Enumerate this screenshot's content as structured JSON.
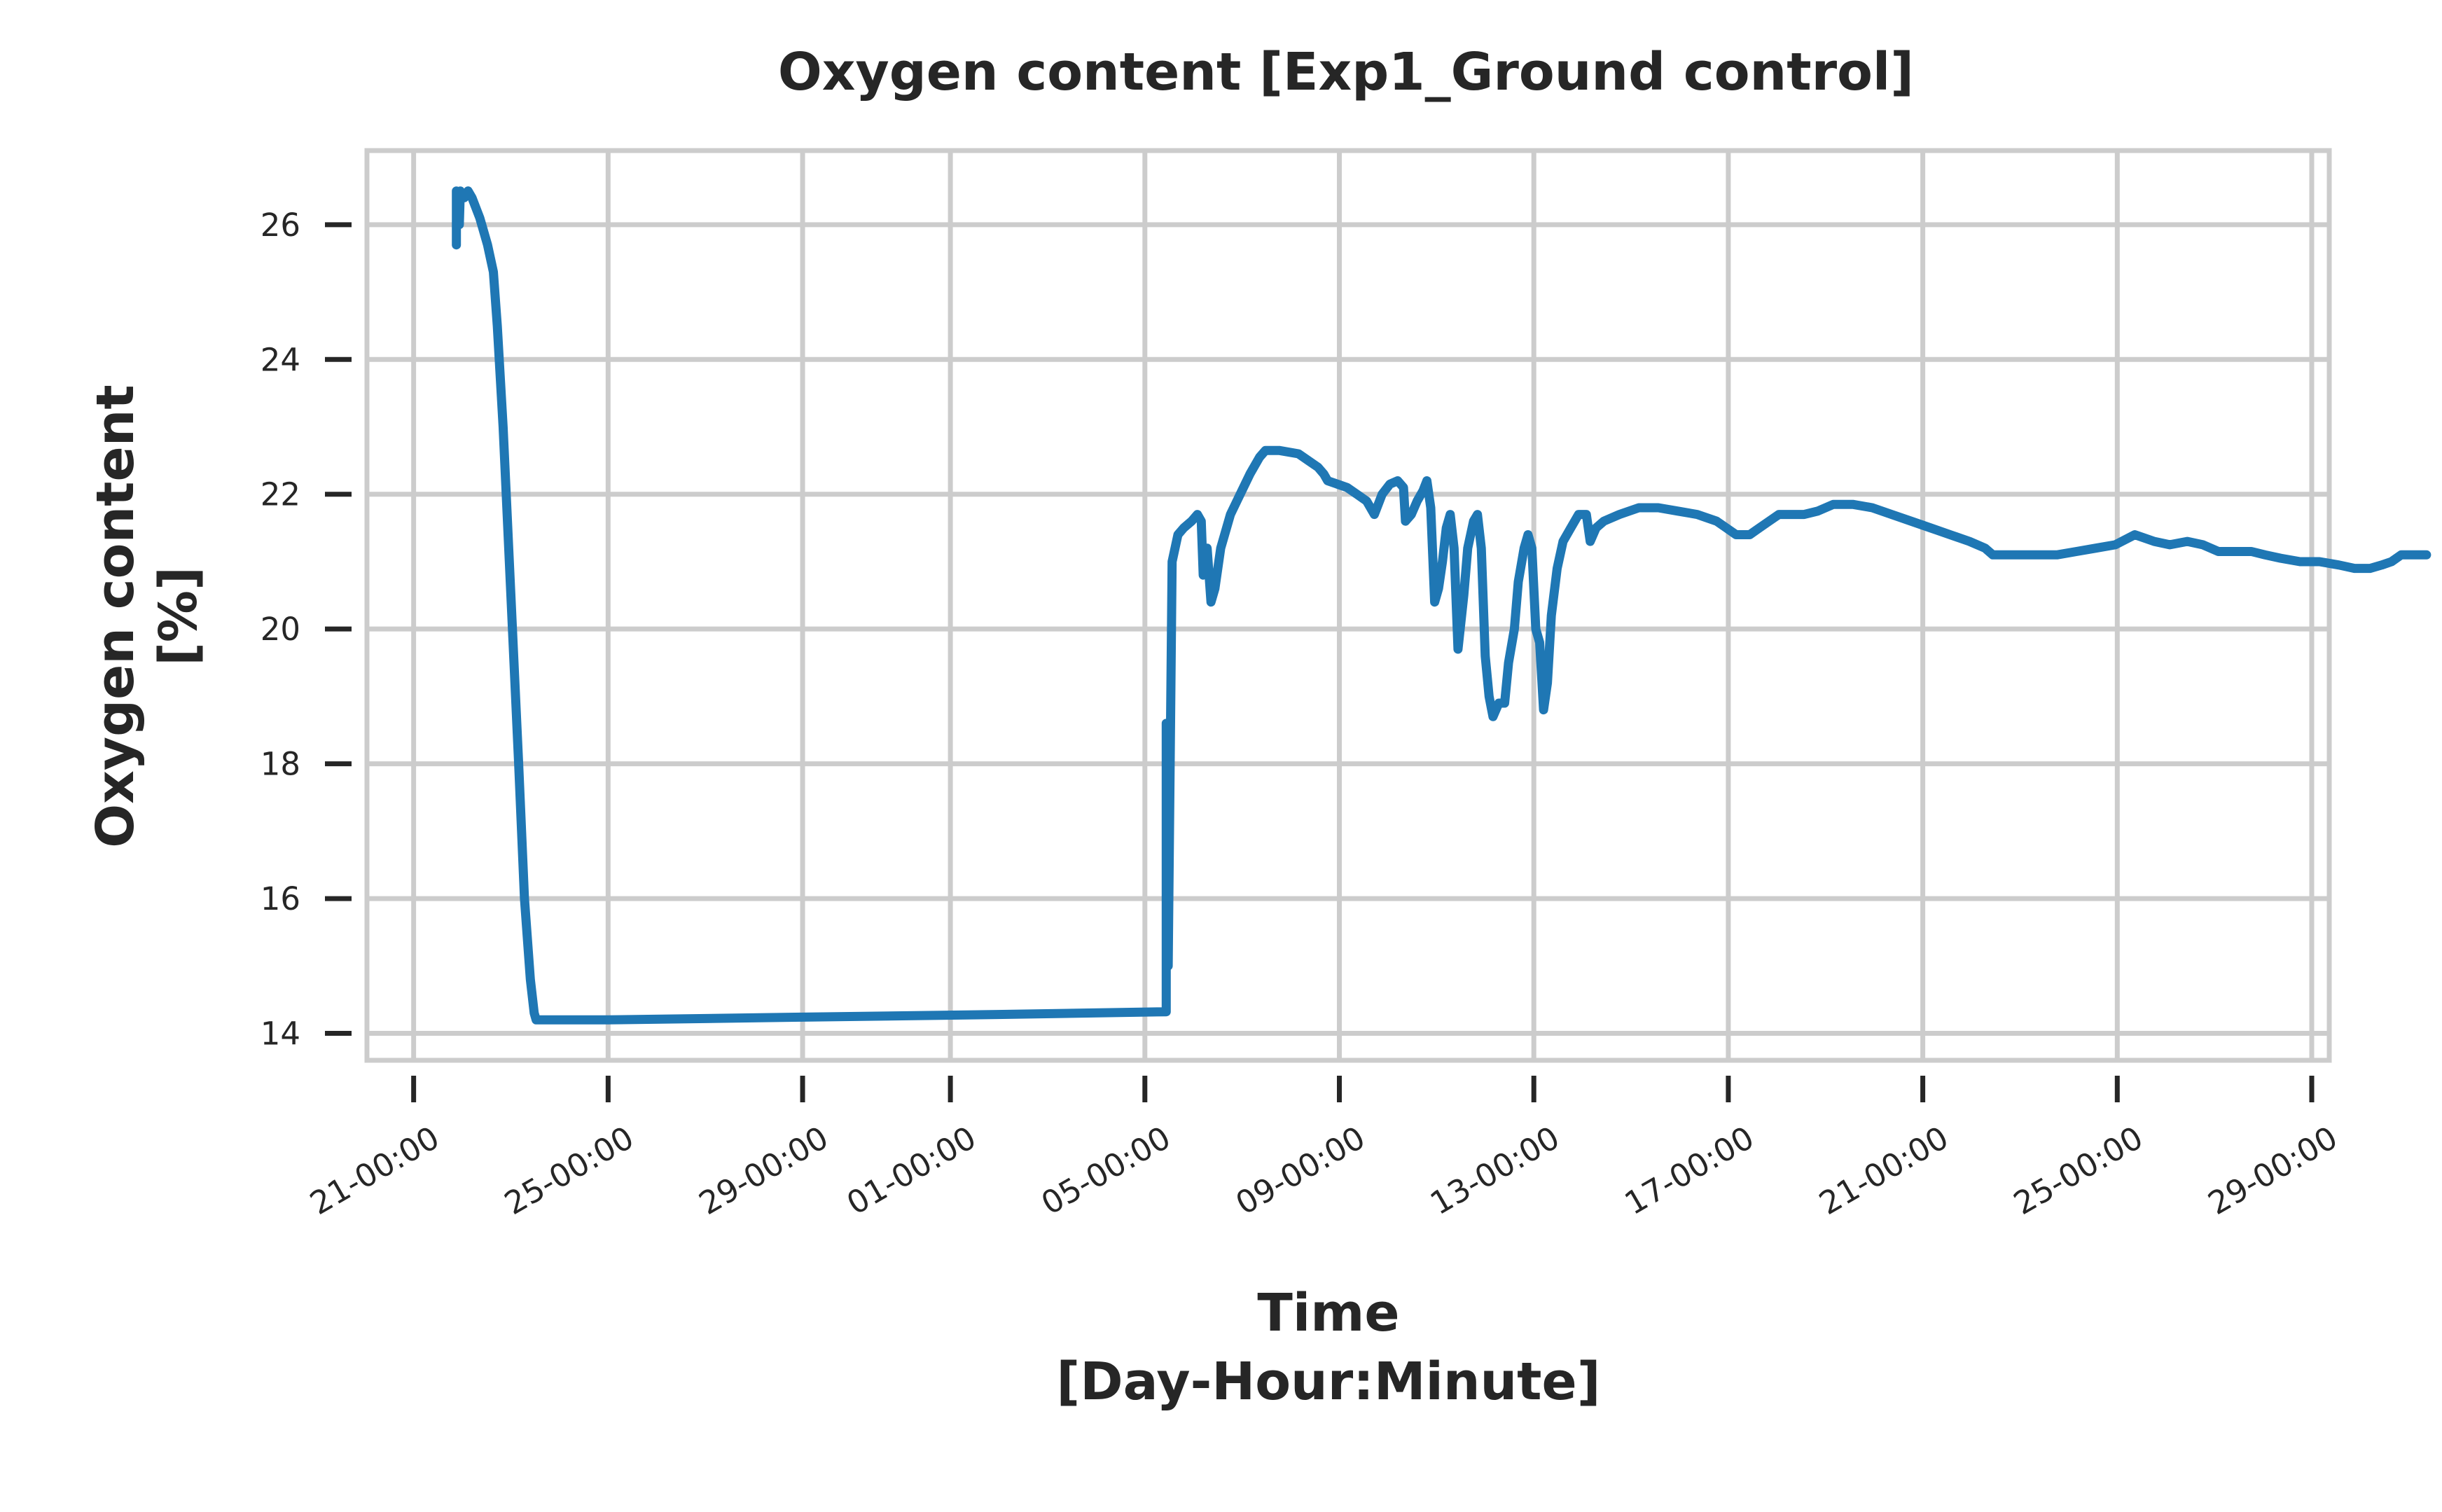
{
  "chart_data": {
    "type": "line",
    "title": "Oxygen content [Exp1_Ground control]",
    "xlabel": [
      "Time",
      "[Day-Hour:Minute]"
    ],
    "ylabel": [
      "Oxygen content",
      "[%]"
    ],
    "x_unit": "days",
    "xlim": [
      -0.24,
      9.85
    ],
    "ylim": [
      13.6,
      27.1
    ],
    "grid": true,
    "legend": "none",
    "line_color": "#1f77b4",
    "x_ticks": [
      {
        "pos": 0,
        "label": "21-00:00"
      },
      {
        "pos": 1,
        "label": "25-00:00"
      },
      {
        "pos": 2,
        "label": "29-00:00"
      },
      {
        "pos": 2.76,
        "label": "01-00:00"
      },
      {
        "pos": 3.76,
        "label": "05-00:00"
      },
      {
        "pos": 4.76,
        "label": "09-00:00"
      },
      {
        "pos": 5.76,
        "label": "13-00:00"
      },
      {
        "pos": 6.76,
        "label": "17-00:00"
      },
      {
        "pos": 7.76,
        "label": "21-00:00"
      },
      {
        "pos": 8.76,
        "label": "25-00:00"
      },
      {
        "pos": 9.76,
        "label": "29-00:00"
      }
    ],
    "y_ticks": [
      {
        "value": 14,
        "label": "14"
      },
      {
        "value": 16,
        "label": "16"
      },
      {
        "value": 18,
        "label": "18"
      },
      {
        "value": 20,
        "label": "20"
      },
      {
        "value": 22,
        "label": "22"
      },
      {
        "value": 24,
        "label": "24"
      },
      {
        "value": 26,
        "label": "26"
      }
    ],
    "series": [
      {
        "points": [
          [
            0.22,
            25.7
          ],
          [
            0.22,
            26.5
          ],
          [
            0.235,
            26.0
          ],
          [
            0.24,
            26.5
          ],
          [
            0.26,
            26.4
          ],
          [
            0.28,
            26.5
          ],
          [
            0.3,
            26.4
          ],
          [
            0.34,
            26.1
          ],
          [
            0.38,
            25.7
          ],
          [
            0.41,
            25.3
          ],
          [
            0.43,
            24.5
          ],
          [
            0.46,
            23.0
          ],
          [
            0.5,
            20.5
          ],
          [
            0.54,
            18.0
          ],
          [
            0.57,
            16.0
          ],
          [
            0.6,
            14.8
          ],
          [
            0.62,
            14.3
          ],
          [
            0.63,
            14.2
          ],
          [
            1.0,
            14.2
          ],
          [
            2.0,
            14.24
          ],
          [
            3.0,
            14.28
          ],
          [
            3.87,
            14.32
          ],
          [
            3.87,
            18.6
          ],
          [
            3.88,
            15.0
          ],
          [
            3.9,
            21.0
          ],
          [
            3.93,
            21.4
          ],
          [
            3.96,
            21.5
          ],
          [
            4.0,
            21.6
          ],
          [
            4.03,
            21.7
          ],
          [
            4.05,
            21.6
          ],
          [
            4.06,
            20.8
          ],
          [
            4.08,
            21.2
          ],
          [
            4.1,
            20.4
          ],
          [
            4.12,
            20.6
          ],
          [
            4.15,
            21.2
          ],
          [
            4.2,
            21.7
          ],
          [
            4.25,
            22.0
          ],
          [
            4.3,
            22.3
          ],
          [
            4.35,
            22.55
          ],
          [
            4.38,
            22.65
          ],
          [
            4.45,
            22.65
          ],
          [
            4.55,
            22.6
          ],
          [
            4.6,
            22.5
          ],
          [
            4.65,
            22.4
          ],
          [
            4.68,
            22.3
          ],
          [
            4.7,
            22.2
          ],
          [
            4.75,
            22.15
          ],
          [
            4.8,
            22.1
          ],
          [
            4.85,
            22.0
          ],
          [
            4.9,
            21.9
          ],
          [
            4.94,
            21.7
          ],
          [
            4.98,
            22.0
          ],
          [
            5.02,
            22.15
          ],
          [
            5.06,
            22.2
          ],
          [
            5.09,
            22.1
          ],
          [
            5.1,
            21.6
          ],
          [
            5.13,
            21.7
          ],
          [
            5.16,
            21.9
          ],
          [
            5.19,
            22.05
          ],
          [
            5.21,
            22.2
          ],
          [
            5.23,
            21.8
          ],
          [
            5.25,
            20.4
          ],
          [
            5.27,
            20.6
          ],
          [
            5.29,
            21.0
          ],
          [
            5.31,
            21.5
          ],
          [
            5.33,
            21.7
          ],
          [
            5.35,
            21.2
          ],
          [
            5.37,
            19.7
          ],
          [
            5.4,
            20.5
          ],
          [
            5.42,
            21.2
          ],
          [
            5.45,
            21.6
          ],
          [
            5.47,
            21.7
          ],
          [
            5.49,
            21.2
          ],
          [
            5.51,
            19.6
          ],
          [
            5.53,
            19.0
          ],
          [
            5.55,
            18.7
          ],
          [
            5.58,
            18.9
          ],
          [
            5.61,
            18.9
          ],
          [
            5.63,
            19.5
          ],
          [
            5.66,
            20.0
          ],
          [
            5.68,
            20.7
          ],
          [
            5.71,
            21.2
          ],
          [
            5.73,
            21.4
          ],
          [
            5.75,
            21.2
          ],
          [
            5.77,
            20.0
          ],
          [
            5.79,
            19.8
          ],
          [
            5.81,
            18.8
          ],
          [
            5.83,
            19.2
          ],
          [
            5.85,
            20.2
          ],
          [
            5.88,
            20.9
          ],
          [
            5.91,
            21.3
          ],
          [
            5.95,
            21.5
          ],
          [
            5.99,
            21.7
          ],
          [
            6.03,
            21.7
          ],
          [
            6.05,
            21.3
          ],
          [
            6.08,
            21.5
          ],
          [
            6.12,
            21.6
          ],
          [
            6.2,
            21.7
          ],
          [
            6.3,
            21.8
          ],
          [
            6.4,
            21.8
          ],
          [
            6.5,
            21.75
          ],
          [
            6.6,
            21.7
          ],
          [
            6.7,
            21.6
          ],
          [
            6.75,
            21.5
          ],
          [
            6.8,
            21.4
          ],
          [
            6.87,
            21.4
          ],
          [
            6.92,
            21.5
          ],
          [
            6.97,
            21.6
          ],
          [
            7.02,
            21.7
          ],
          [
            7.07,
            21.7
          ],
          [
            7.15,
            21.7
          ],
          [
            7.22,
            21.75
          ],
          [
            7.3,
            21.85
          ],
          [
            7.4,
            21.85
          ],
          [
            7.5,
            21.8
          ],
          [
            7.6,
            21.7
          ],
          [
            7.7,
            21.6
          ],
          [
            7.8,
            21.5
          ],
          [
            7.9,
            21.4
          ],
          [
            8.0,
            21.3
          ],
          [
            8.08,
            21.2
          ],
          [
            8.12,
            21.1
          ],
          [
            8.2,
            21.1
          ],
          [
            8.3,
            21.1
          ],
          [
            8.45,
            21.1
          ],
          [
            8.55,
            21.15
          ],
          [
            8.65,
            21.2
          ],
          [
            8.75,
            21.25
          ],
          [
            8.85,
            21.4
          ],
          [
            8.95,
            21.3
          ],
          [
            9.03,
            21.25
          ],
          [
            9.12,
            21.3
          ],
          [
            9.2,
            21.25
          ],
          [
            9.28,
            21.15
          ],
          [
            9.35,
            21.15
          ],
          [
            9.45,
            21.15
          ],
          [
            9.52,
            21.1
          ],
          [
            9.6,
            21.05
          ],
          [
            9.7,
            21.0
          ],
          [
            9.8,
            21.0
          ],
          [
            9.9,
            20.95
          ],
          [
            9.98,
            20.9
          ],
          [
            10.06,
            20.9
          ],
          [
            10.12,
            20.95
          ],
          [
            10.17,
            21.0
          ],
          [
            10.22,
            21.1
          ],
          [
            10.28,
            21.1
          ],
          [
            10.35,
            21.1
          ]
        ]
      }
    ]
  }
}
